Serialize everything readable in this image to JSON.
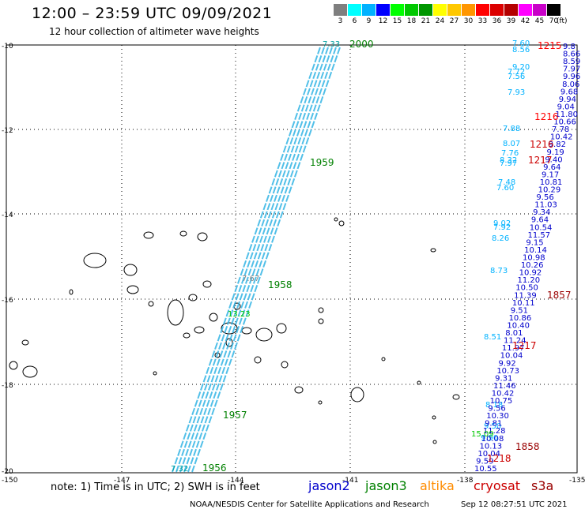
{
  "header": {
    "title": "12:00 – 23:59 UTC 09/09/2021",
    "subtitle": "12 hour collection of altimeter wave heights"
  },
  "legend": {
    "unit": "(ft)",
    "bins": [
      {
        "label": "3",
        "color": "#7f7f7f"
      },
      {
        "label": "6",
        "color": "#00ffff"
      },
      {
        "label": "9",
        "color": "#00b2ff"
      },
      {
        "label": "12",
        "color": "#0000ff"
      },
      {
        "label": "15",
        "color": "#00ff00"
      },
      {
        "label": "18",
        "color": "#00c800"
      },
      {
        "label": "21",
        "color": "#009600"
      },
      {
        "label": "24",
        "color": "#ffff00"
      },
      {
        "label": "27",
        "color": "#ffc800"
      },
      {
        "label": "30",
        "color": "#ff9600"
      },
      {
        "label": "33",
        "color": "#ff0000"
      },
      {
        "label": "36",
        "color": "#dc0000"
      },
      {
        "label": "39",
        "color": "#b40000"
      },
      {
        "label": "42",
        "color": "#ff00ff"
      },
      {
        "label": "45",
        "color": "#c800c8"
      },
      {
        "label": "70",
        "color": "#000000"
      }
    ]
  },
  "axes": {
    "lat_labels": [
      "-10",
      "-12",
      "-14",
      "-16",
      "-18",
      "-20"
    ],
    "lon_labels": [
      "-150",
      "-147",
      "-144",
      "-141",
      "-138",
      "-135"
    ]
  },
  "track_left": {
    "color": "#33b5e5",
    "label_color": "#00a0a0",
    "times": [
      {
        "t": "2000",
        "v": "7.33"
      },
      {
        "t": "1959",
        "v": ""
      },
      {
        "t": "1958",
        "v": ""
      },
      {
        "t": "1957",
        "v": ""
      },
      {
        "t": "1956",
        "v": "7.32"
      }
    ],
    "extra_values": [
      {
        "v": "7.67"
      },
      {
        "v": "13.23"
      }
    ]
  },
  "track_right": {
    "times": [
      {
        "t": "1215"
      },
      {
        "t": "1216"
      },
      {
        "t": "1216"
      },
      {
        "t": "1217"
      },
      {
        "t": "1217"
      },
      {
        "t": "1857"
      },
      {
        "t": "1858"
      },
      {
        "t": "1218"
      }
    ],
    "values_cyan": [
      "7.60",
      "8.56",
      "9.20",
      "7.72",
      "7.56",
      "7.93",
      "7.88",
      "8.07",
      "7.76",
      "8.32",
      "7.97",
      "7.48",
      "7.60",
      "9.02",
      "7.92",
      "8.26",
      "8.73",
      "8.51",
      "8.18",
      "9.50",
      "9.90"
    ],
    "values_blue": [
      "9.8",
      "8.66",
      "8.59",
      "7.97",
      "9.96",
      "8.06",
      "9.68",
      "9.94",
      "9.04",
      "11.80",
      "10.66",
      "7.78",
      "10.42",
      "9.82",
      "9.19",
      "9.40",
      "9.64",
      "9.17",
      "10.81",
      "10.29",
      "9.56",
      "11.03",
      "9.34",
      "9.64",
      "10.54",
      "11.57",
      "9.15",
      "10.14",
      "10.98",
      "10.26",
      "10.92",
      "11.20",
      "10.50",
      "11.39",
      "10.11",
      "9.51",
      "10.86",
      "10.40",
      "8.01",
      "11.24",
      "11.97",
      "10.04",
      "9.92",
      "10.73",
      "9.31",
      "11.46",
      "10.42",
      "10.75",
      "9.56",
      "10.30",
      "9.81",
      "11.28",
      "10.08",
      "10.13",
      "10.04",
      "9.59",
      "10.55"
    ],
    "values_green": [
      "15.09"
    ]
  },
  "satellites": [
    {
      "name": "jason2",
      "color": "#0000cc"
    },
    {
      "name": "jason3",
      "color": "#008000"
    },
    {
      "name": "altika",
      "color": "#ff8c00"
    },
    {
      "name": "cryosat",
      "color": "#cc0000"
    },
    {
      "name": "s3a",
      "color": "#990000"
    }
  ],
  "footer": {
    "note": "note: 1) Time is in UTC; 2) SWH is in feet",
    "credit": "NOAA/NESDIS Center for Satellite Applications and Research",
    "timestamp": "Sep 12 08:27:51 UTC 2021"
  }
}
